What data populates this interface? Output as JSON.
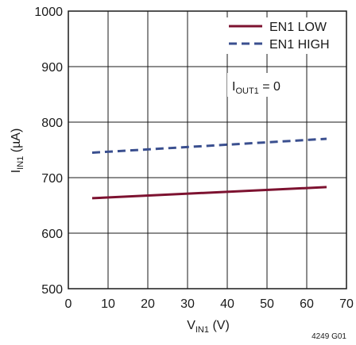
{
  "chart_data": {
    "type": "line",
    "xlabel": {
      "main": "V",
      "sub": "IN1",
      "unit": " (V)"
    },
    "ylabel": {
      "main": "I",
      "sub": "IN1",
      "unit": " (µA)"
    },
    "xlim": [
      0,
      70
    ],
    "ylim": [
      500,
      1000
    ],
    "x_ticks": [
      0,
      10,
      20,
      30,
      40,
      50,
      60,
      70
    ],
    "y_ticks": [
      500,
      600,
      700,
      800,
      900,
      1000
    ],
    "grid": true,
    "legend_position": "top-right",
    "series": [
      {
        "name": "EN1 LOW",
        "color": "#7d1230",
        "style": "solid",
        "x": [
          6,
          65
        ],
        "y": [
          663,
          683
        ]
      },
      {
        "name": "EN1 HIGH",
        "color": "#3a4f8f",
        "style": "dashed",
        "x": [
          6,
          65
        ],
        "y": [
          745,
          770
        ]
      }
    ],
    "annotation": {
      "main": "I",
      "sub": "OUT1",
      "rest": " = 0"
    },
    "figure_id": "4249 G01"
  }
}
